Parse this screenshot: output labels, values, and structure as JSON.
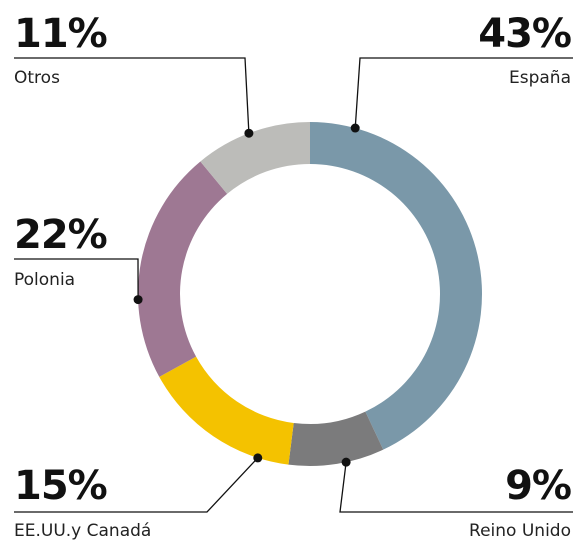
{
  "chart_data": {
    "type": "pie",
    "title": "",
    "categories": [
      "España",
      "Reino Unido",
      "EE.UU.y Canadá",
      "Polonia",
      "Otros"
    ],
    "values": [
      43,
      9,
      15,
      22,
      11
    ],
    "labels": [
      "43%",
      "9%",
      "15%",
      "22%",
      "11%"
    ],
    "colors": [
      "#7a98a9",
      "#7b7b7c",
      "#f4c200",
      "#9e7893",
      "#bcbcb9"
    ],
    "donut": true,
    "legend": "none"
  }
}
